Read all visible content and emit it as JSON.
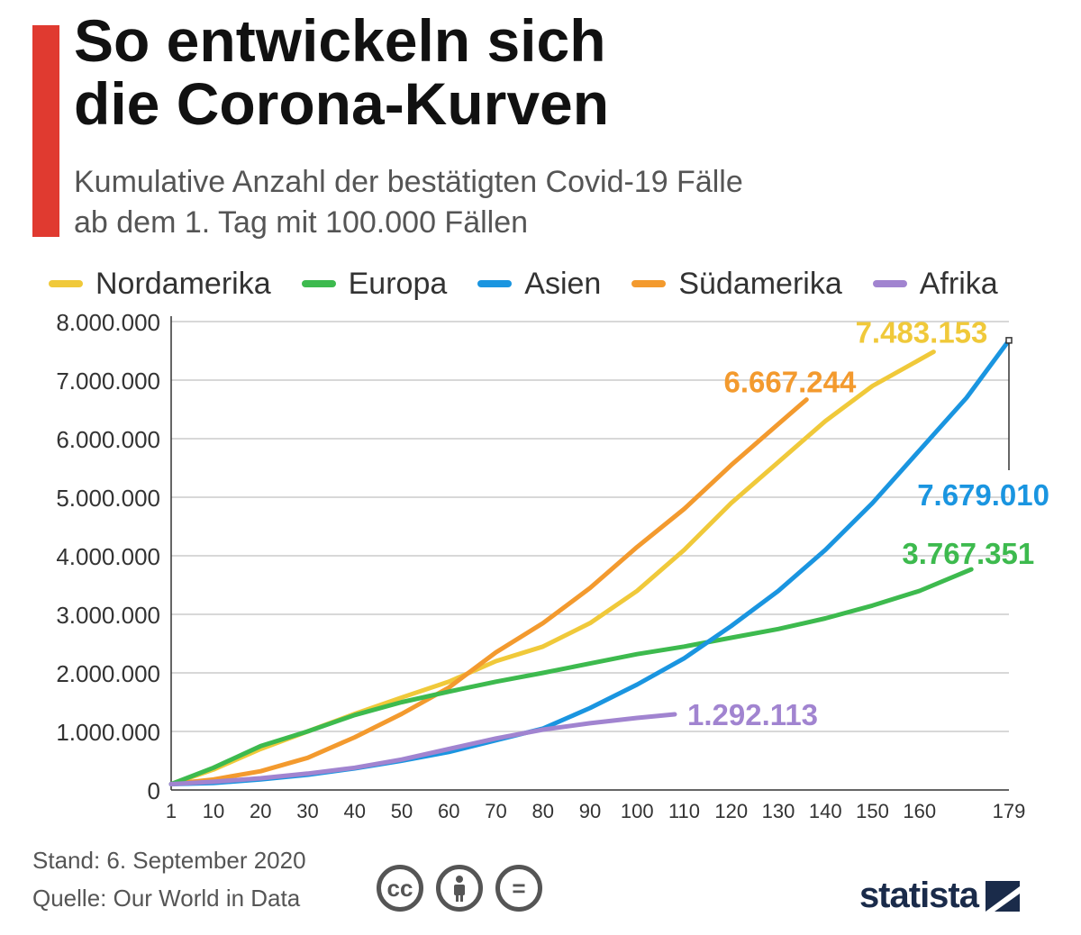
{
  "header": {
    "title_line1": "So entwickeln sich",
    "title_line2": "die Corona-Kurven",
    "subtitle_line1": "Kumulative Anzahl der bestätigten Covid-19 Fälle",
    "subtitle_line2": "ab dem 1. Tag mit 100.000 Fällen"
  },
  "footer": {
    "stand": "Stand: 6. September 2020",
    "quelle": "Quelle: Our World in Data",
    "cc_label": "cc",
    "equals_label": "=",
    "brand": "statista"
  },
  "colors": {
    "accent": "#e03a30",
    "grid": "#cccccc",
    "axis": "#333333"
  },
  "chart_data": {
    "type": "line",
    "title": "So entwickeln sich die Corona-Kurven",
    "subtitle": "Kumulative Anzahl der bestätigten Covid-19 Fälle ab dem 1. Tag mit 100.000 Fällen",
    "xlim": [
      1,
      179
    ],
    "ylim": [
      0,
      8000000
    ],
    "xticks": [
      1,
      10,
      20,
      30,
      40,
      50,
      60,
      70,
      80,
      90,
      100,
      110,
      120,
      130,
      140,
      150,
      160,
      179
    ],
    "yticks": [
      0,
      1000000,
      2000000,
      3000000,
      4000000,
      5000000,
      6000000,
      7000000,
      8000000
    ],
    "ytick_labels": [
      "0",
      "1.000.000",
      "2.000.000",
      "3.000.000",
      "4.000.000",
      "5.000.000",
      "6.000.000",
      "7.000.000",
      "8.000.000"
    ],
    "grid": true,
    "legend_position": "top",
    "series": [
      {
        "name": "Nordamerika",
        "color": "#f0c93a",
        "end_label": "7.483.153",
        "x": [
          1,
          10,
          20,
          30,
          40,
          50,
          60,
          70,
          80,
          90,
          100,
          110,
          120,
          130,
          140,
          150,
          163
        ],
        "y": [
          100000,
          350000,
          700000,
          1000000,
          1300000,
          1580000,
          1850000,
          2200000,
          2450000,
          2850000,
          3400000,
          4100000,
          4900000,
          5600000,
          6300000,
          6900000,
          7483153
        ]
      },
      {
        "name": "Europa",
        "color": "#3dba4e",
        "end_label": "3.767.351",
        "x": [
          1,
          10,
          20,
          30,
          40,
          50,
          60,
          70,
          80,
          90,
          100,
          110,
          120,
          130,
          140,
          150,
          160,
          171
        ],
        "y": [
          100000,
          380000,
          750000,
          1000000,
          1280000,
          1500000,
          1680000,
          1850000,
          2000000,
          2160000,
          2320000,
          2450000,
          2600000,
          2750000,
          2930000,
          3150000,
          3400000,
          3767351
        ]
      },
      {
        "name": "Asien",
        "color": "#1a95e0",
        "end_label": "7.679.010",
        "x": [
          1,
          10,
          20,
          30,
          40,
          50,
          60,
          70,
          80,
          90,
          100,
          110,
          120,
          130,
          140,
          150,
          160,
          170,
          179
        ],
        "y": [
          100000,
          120000,
          180000,
          260000,
          370000,
          500000,
          650000,
          850000,
          1050000,
          1400000,
          1800000,
          2250000,
          2800000,
          3400000,
          4100000,
          4900000,
          5800000,
          6700000,
          7679010
        ]
      },
      {
        "name": "Südamerika",
        "color": "#f39a2e",
        "end_label": "6.667.244",
        "x": [
          1,
          10,
          20,
          30,
          40,
          50,
          60,
          70,
          80,
          90,
          100,
          110,
          120,
          130,
          136
        ],
        "y": [
          100000,
          180000,
          320000,
          550000,
          900000,
          1300000,
          1750000,
          2350000,
          2850000,
          3450000,
          4150000,
          4800000,
          5550000,
          6250000,
          6667244
        ]
      },
      {
        "name": "Afrika",
        "color": "#a184d0",
        "end_label": "1.292.113",
        "x": [
          1,
          10,
          20,
          30,
          40,
          50,
          60,
          70,
          80,
          90,
          100,
          108
        ],
        "y": [
          100000,
          140000,
          200000,
          280000,
          380000,
          520000,
          700000,
          880000,
          1030000,
          1140000,
          1230000,
          1292113
        ]
      }
    ]
  }
}
